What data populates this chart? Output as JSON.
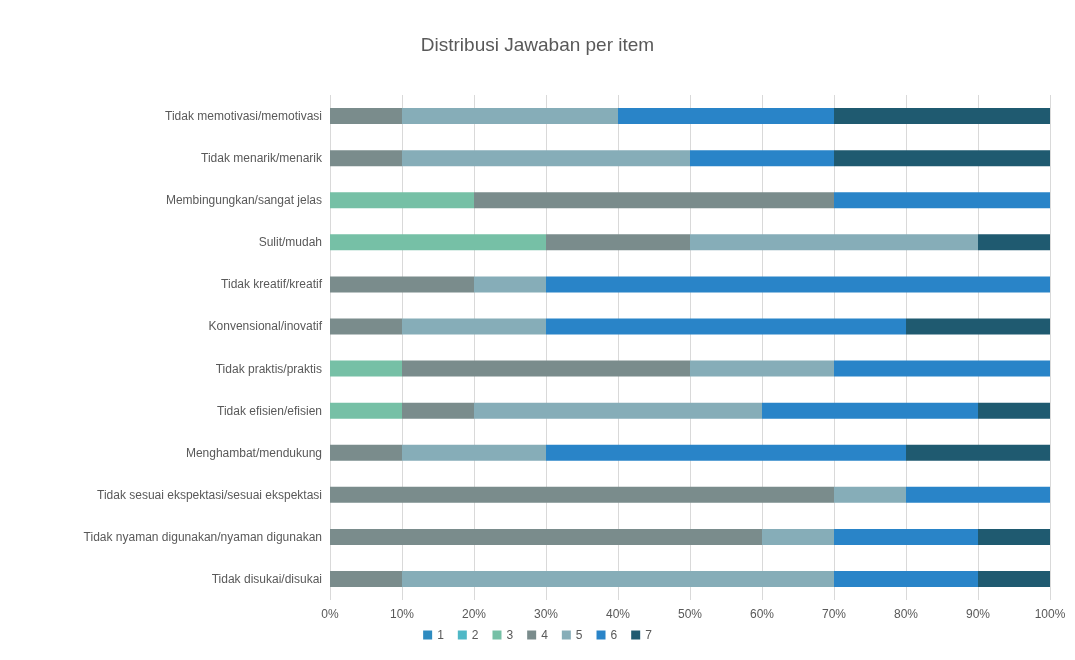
{
  "chart_data": {
    "type": "bar",
    "title": "Distribusi Jawaban per item",
    "orientation": "horizontal",
    "stacked": true,
    "grid": "x",
    "legend": "bottom",
    "categories": [
      "Tidak memotivasi/memotivasi",
      "Tidak menarik/menarik",
      "Membingungkan/sangat jelas",
      "Sulit/mudah",
      "Tidak kreatif/kreatif",
      "Konvensional/inovatif",
      "Tidak praktis/praktis",
      "Tidak efisien/efisien",
      "Menghambat/mendukung",
      "Tidak sesuai ekspektasi/sesuai ekspektasi",
      "Tidak nyaman digunakan/nyaman digunakan",
      "Tidak disukai/disukai"
    ],
    "xlim": [
      0,
      100
    ],
    "xticks": [
      {
        "value": 0,
        "label": "0%"
      },
      {
        "value": 10,
        "label": "10%"
      },
      {
        "value": 20,
        "label": "20%"
      },
      {
        "value": 30,
        "label": "30%"
      },
      {
        "value": 40,
        "label": "40%"
      },
      {
        "value": 50,
        "label": "50%"
      },
      {
        "value": 60,
        "label": "60%"
      },
      {
        "value": 70,
        "label": "70%"
      },
      {
        "value": 80,
        "label": "80%"
      },
      {
        "value": 90,
        "label": "90%"
      },
      {
        "value": 100,
        "label": "100%"
      }
    ],
    "series": [
      {
        "name": "1",
        "color": "#2e8bc0",
        "values": [
          0,
          0,
          0,
          0,
          0,
          0,
          0,
          0,
          0,
          0,
          0,
          0
        ]
      },
      {
        "name": "2",
        "color": "#4fb8c6",
        "values": [
          0,
          0,
          0,
          0,
          0,
          0,
          0,
          0,
          0,
          0,
          0,
          0
        ]
      },
      {
        "name": "3",
        "color": "#76c0a6",
        "values": [
          0,
          0,
          20,
          30,
          0,
          0,
          10,
          10,
          0,
          0,
          0,
          0
        ]
      },
      {
        "name": "4",
        "color": "#7a8c8c",
        "values": [
          10,
          10,
          50,
          20,
          20,
          10,
          40,
          10,
          10,
          70,
          60,
          10
        ]
      },
      {
        "name": "5",
        "color": "#86adb8",
        "values": [
          30,
          40,
          0,
          40,
          10,
          20,
          20,
          40,
          20,
          10,
          10,
          60
        ]
      },
      {
        "name": "6",
        "color": "#2984c8",
        "values": [
          30,
          20,
          30,
          0,
          70,
          50,
          30,
          30,
          50,
          20,
          20,
          20
        ]
      },
      {
        "name": "7",
        "color": "#1f5a70",
        "values": [
          30,
          30,
          0,
          10,
          0,
          20,
          0,
          10,
          20,
          0,
          10,
          10
        ]
      }
    ]
  }
}
